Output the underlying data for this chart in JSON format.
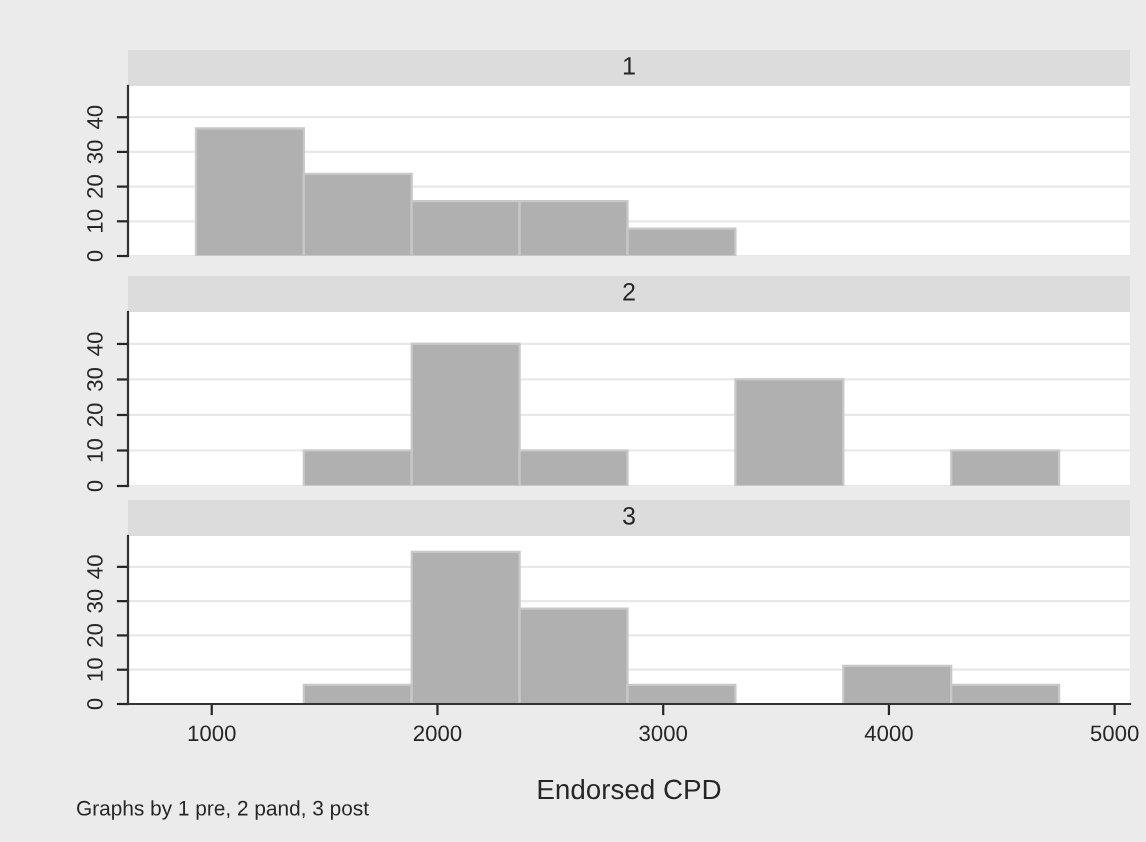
{
  "chart_data": [
    {
      "type": "histogram",
      "title": "1",
      "bins": [
        930,
        1408,
        1886,
        2364,
        2842,
        3320,
        3798,
        4276,
        4754
      ],
      "values": [
        36.8,
        23.7,
        15.8,
        15.8,
        7.9,
        0,
        0,
        0
      ],
      "color": "#b0b0b0",
      "xlim": [
        629,
        5068
      ],
      "ylim": [
        0,
        49
      ],
      "yticks": [
        0,
        10,
        20,
        30,
        40
      ],
      "grid": "y",
      "tick_labels": "y"
    },
    {
      "type": "histogram",
      "title": "2",
      "bins": [
        930,
        1408,
        1886,
        2364,
        2842,
        3320,
        3798,
        4276,
        4754
      ],
      "values": [
        0,
        10,
        40,
        10,
        0,
        30,
        0,
        10
      ],
      "color": "#b0b0b0",
      "xlim": [
        629,
        5068
      ],
      "ylim": [
        0,
        49
      ],
      "yticks": [
        0,
        10,
        20,
        30,
        40
      ],
      "grid": "y",
      "tick_labels": "y"
    },
    {
      "type": "histogram",
      "title": "3",
      "bins": [
        930,
        1408,
        1886,
        2364,
        2842,
        3320,
        3798,
        4276,
        4754
      ],
      "values": [
        0,
        5.6,
        44.4,
        27.8,
        5.6,
        0,
        11.1,
        5.6
      ],
      "color": "#b0b0b0",
      "xlim": [
        629,
        5068
      ],
      "ylim": [
        0,
        49
      ],
      "yticks": [
        0,
        10,
        20,
        30,
        40
      ],
      "xticks": [
        1000,
        2000,
        3000,
        4000,
        5000
      ],
      "grid": "y",
      "xlabel": "Endorsed CPD",
      "annotations": [
        "Graphs by 1 pre, 2 pand, 3 post"
      ]
    }
  ]
}
